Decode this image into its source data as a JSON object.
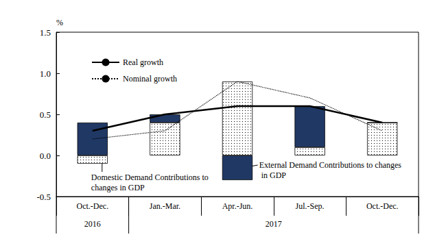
{
  "chart_data": {
    "type": "bar",
    "y_label": "%",
    "categories": [
      "Oct.-Dec.",
      "Jan.-Mar.",
      "Apr.-Jun.",
      "Jul.-Sep.",
      "Oct.-Dec."
    ],
    "category_groups": [
      {
        "label": "2016",
        "size": 1
      },
      {
        "label": "2017",
        "size": 4
      }
    ],
    "stacked": true,
    "grid": false,
    "legend": "upper left",
    "ylim": [
      -0.5,
      1.5
    ],
    "yticks": [
      -0.5,
      {
        "value": 0,
        "label": "0.0"
      },
      0.5,
      {
        "value": 1,
        "label": "1.0"
      },
      1.5
    ],
    "series": [
      {
        "name": "Domestic Demand Contributions to changes in GDP",
        "type": "bar",
        "color": "#ffffff",
        "marker": "dots",
        "values": [
          -0.1,
          0.4,
          0.9,
          0.1,
          0.4
        ]
      },
      {
        "name": "External Demand Contributions to changes in GDP",
        "type": "bar",
        "color": "#203864",
        "values": [
          0.4,
          0.1,
          -0.3,
          0.5,
          0.0
        ]
      },
      {
        "name": "Real growth",
        "type": "line",
        "color": "#000000",
        "line_style": "solid",
        "values": [
          0.3,
          0.5,
          0.6,
          0.6,
          0.4
        ]
      },
      {
        "name": "Nominal growth",
        "type": "line",
        "color": "#000000",
        "line_style": "dotted",
        "values": [
          0.2,
          0.3,
          0.9,
          0.7,
          0.3
        ]
      }
    ]
  }
}
